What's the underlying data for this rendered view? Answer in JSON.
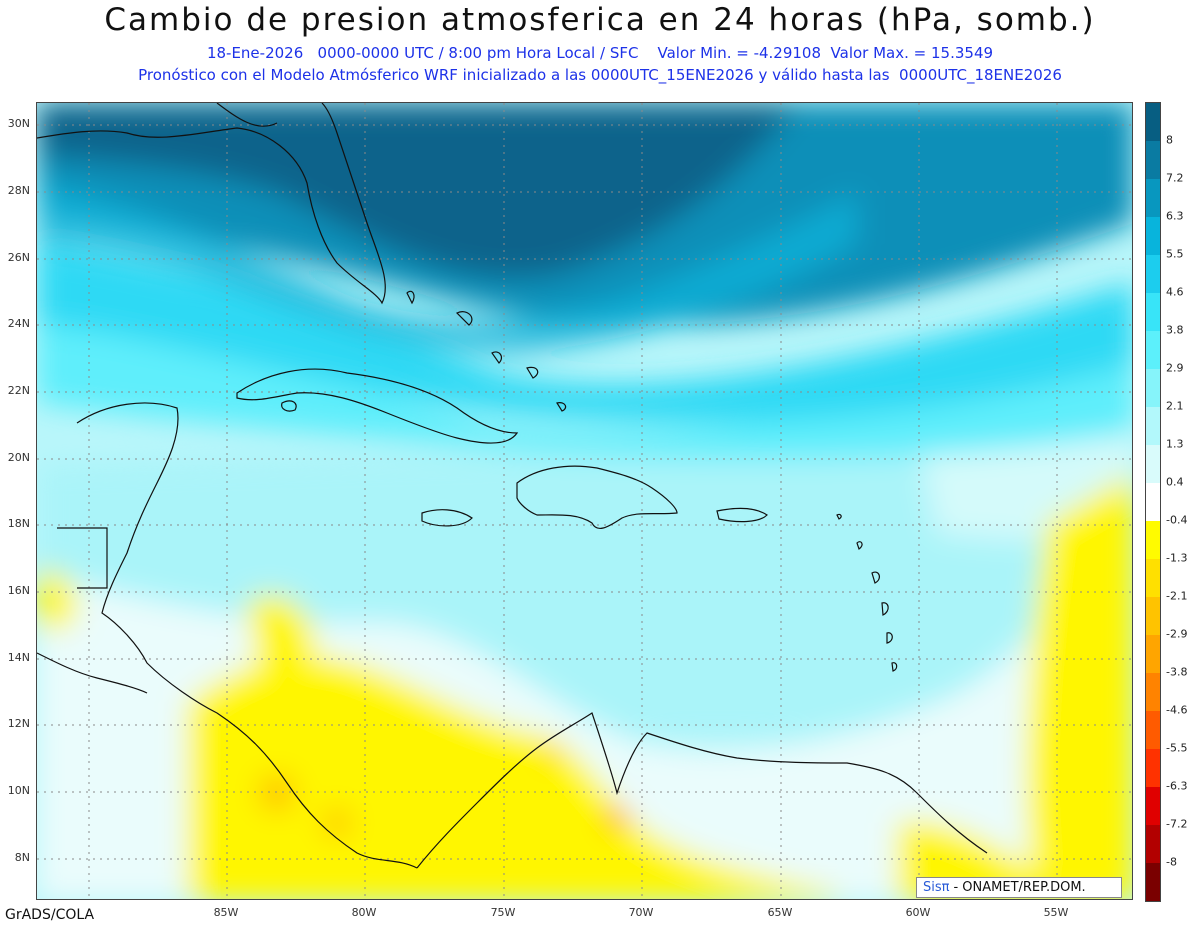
{
  "title": "Cambio de presion atmosferica en 24 horas (hPa, somb.)",
  "subtitle_line1": "18-Ene-2026   0000-0000 UTC / 8:00 pm Hora Local / SFC    Valor Min. = -4.29108  Valor Max. = 15.3549",
  "subtitle_line2": "Pronóstico con el Modelo Atmósferico WRF inicializado a las 0000UTC_15ENE2026 y válido hasta las  0000UTC_18ENE2026",
  "lat_labels": [
    "30N",
    "28N",
    "26N",
    "24N",
    "22N",
    "20N",
    "18N",
    "16N",
    "14N",
    "12N",
    "10N",
    "8N"
  ],
  "lon_labels": [
    "85W",
    "80W",
    "75W",
    "70W",
    "65W",
    "60W",
    "55W"
  ],
  "colorbar": {
    "labels": [
      "8",
      "7.2",
      "6.3",
      "5.5",
      "4.6",
      "3.8",
      "2.9",
      "2.1",
      "1.3",
      "0.4",
      "-0.4",
      "-1.3",
      "-2.1",
      "-2.9",
      "-3.8",
      "-4.6",
      "-5.5",
      "-6.3",
      "-7.2",
      "-8"
    ],
    "colors": [
      "#075e82",
      "#0a7ba2",
      "#0897bf",
      "#08b4dc",
      "#1ccdee",
      "#38e4f8",
      "#5cf0fb",
      "#86f4fa",
      "#b2f8fb",
      "#d9fbfb",
      "#ffffff",
      "#fffb00",
      "#ffe000",
      "#ffc300",
      "#ffa500",
      "#ff8300",
      "#ff5b00",
      "#ff3200",
      "#e00000",
      "#b20000",
      "#7a0000"
    ]
  },
  "credit": "GrADS/COLA",
  "logo": {
    "brand": "Sisπ",
    "text": "- ONAMET/REP.DOM."
  }
}
